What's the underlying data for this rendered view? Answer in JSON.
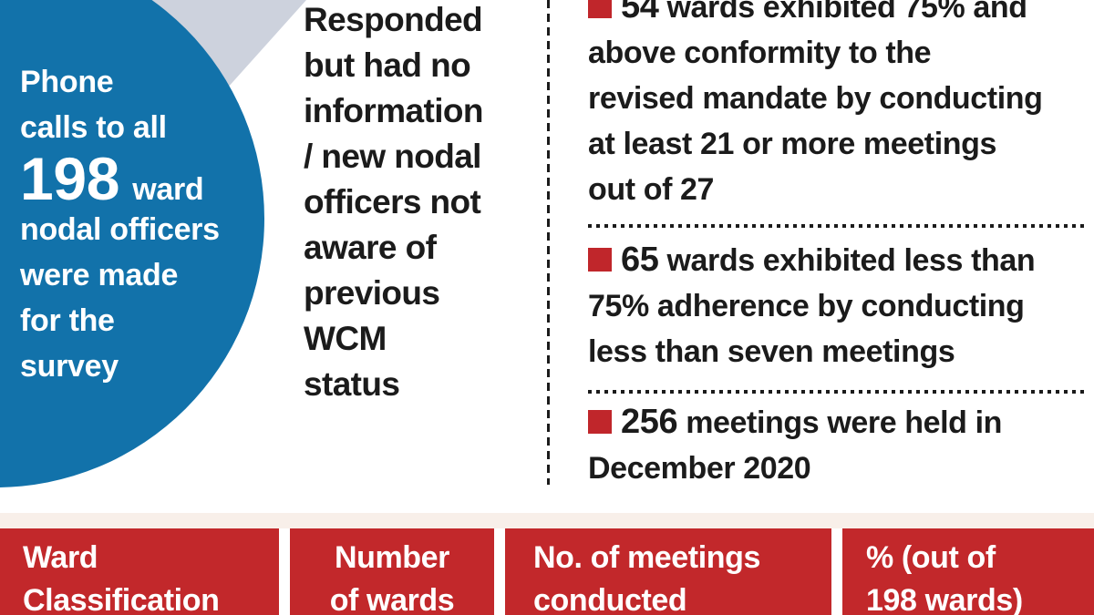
{
  "colors": {
    "circle_blue": "#1272aa",
    "wedge_gray": "#cdd2dd",
    "table_red": "#c2282b",
    "bullet_red": "#c0262b",
    "text_dark": "#1b1b1b",
    "text_white": "#ffffff"
  },
  "circle": {
    "line1": "Phone",
    "line2": "calls to all",
    "big_number": "198",
    "big_suffix": "ward",
    "line3": "nodal officers",
    "line4": "were made",
    "line5": "for the",
    "line6": "survey"
  },
  "middle": {
    "lines": [
      "Responded",
      "but had no",
      "information",
      "/ new nodal",
      "officers not",
      "aware of",
      "previous",
      "WCM",
      "status"
    ]
  },
  "bullets": [
    {
      "number": "54",
      "first_line": "wards exhibited 75% and",
      "lines": [
        "above conformity to the",
        "revised mandate by conducting",
        "at least 21 or more meetings",
        "out of 27"
      ]
    },
    {
      "number": "65",
      "first_line": "wards exhibited less than",
      "lines": [
        "75% adherence by conducting",
        "less than seven meetings"
      ]
    },
    {
      "number": "256",
      "first_line": "meetings were held in",
      "lines": [
        "December 2020"
      ]
    }
  ],
  "table": {
    "headers": [
      {
        "line1": "Ward",
        "line2": "Classification"
      },
      {
        "line1": "Number",
        "line2": "of wards"
      },
      {
        "line1": "No. of meetings",
        "line2": "conducted"
      },
      {
        "line1": "% (out of",
        "line2": "198 wards)"
      }
    ]
  },
  "chart_data": {
    "type": "table",
    "columns": [
      "Ward Classification",
      "Number of wards",
      "No. of meetings conducted",
      "% (out of 198 wards)"
    ],
    "rows": [],
    "annotations": [
      "Phone calls to all 198 ward nodal officers were made for the survey",
      "Responded but had no information / new nodal officers not aware of previous WCM status",
      "54 wards exhibited 75% and above conformity to the revised mandate by conducting at least 21 or more meetings out of 27",
      "65 wards exhibited less than 75% adherence by conducting less than seven meetings",
      "256 meetings were held in December 2020"
    ],
    "key_figures": {
      "total_ward_nodal_officers_called": 198,
      "wards_75pct_and_above_conformity": 54,
      "meetings_mandated": 27,
      "meetings_threshold_high": 21,
      "wards_below_75pct_adherence": 65,
      "meetings_held_december_2020": 256
    }
  }
}
